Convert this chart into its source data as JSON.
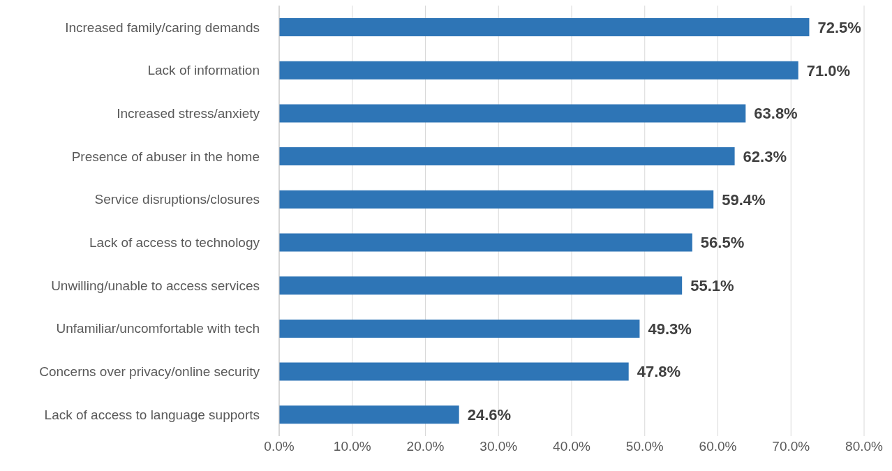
{
  "chart_data": {
    "type": "bar",
    "orientation": "horizontal",
    "categories": [
      "Increased family/caring demands",
      "Lack of information",
      "Increased stress/anxiety",
      "Presence of abuser in the home",
      "Service disruptions/closures",
      "Lack of access to technology",
      "Unwilling/unable to access services",
      "Unfamiliar/uncomfortable with tech",
      "Concerns over privacy/online security",
      "Lack of access to language supports"
    ],
    "values": [
      72.5,
      71.0,
      63.8,
      62.3,
      59.4,
      56.5,
      55.1,
      49.3,
      47.8,
      24.6
    ],
    "value_labels": [
      "72.5%",
      "71.0%",
      "63.8%",
      "62.3%",
      "59.4%",
      "56.5%",
      "55.1%",
      "49.3%",
      "47.8%",
      "24.6%"
    ],
    "color": "#2e75b6",
    "xlim": [
      0,
      80
    ],
    "xticks": [
      {
        "value": 0,
        "label": "0.0%"
      },
      {
        "value": 10,
        "label": "10.0%"
      },
      {
        "value": 20,
        "label": "20.0%"
      },
      {
        "value": 30,
        "label": "30.0%"
      },
      {
        "value": 40,
        "label": "40.0%"
      },
      {
        "value": 50,
        "label": "50.0%"
      },
      {
        "value": 60,
        "label": "60.0%"
      },
      {
        "value": 70,
        "label": "70.0%"
      },
      {
        "value": 80,
        "label": "80.0%"
      }
    ],
    "grid": "x",
    "legend": false
  }
}
